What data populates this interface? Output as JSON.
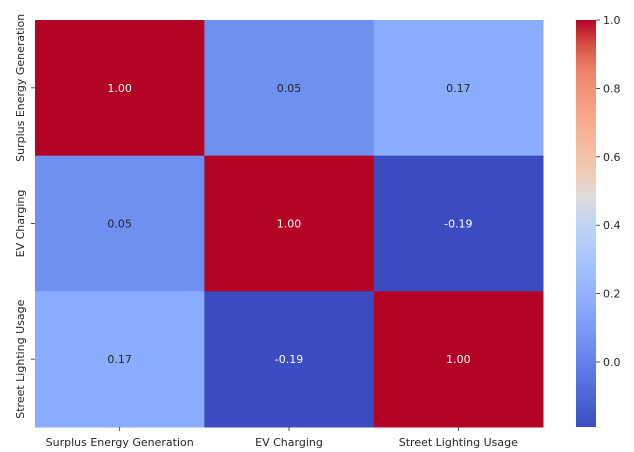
{
  "chart_data": {
    "type": "heatmap",
    "rows": [
      "Surplus Energy Generation",
      "EV Charging",
      "Street Lighting Usage"
    ],
    "columns": [
      "Surplus Energy Generation",
      "EV Charging",
      "Street Lighting Usage"
    ],
    "values": [
      [
        1.0,
        0.05,
        0.17
      ],
      [
        0.05,
        1.0,
        -0.19
      ],
      [
        0.17,
        -0.19,
        1.0
      ]
    ],
    "cell_labels": [
      [
        "1.00",
        "0.05",
        "0.17"
      ],
      [
        "0.05",
        "1.00",
        "-0.19"
      ],
      [
        "0.17",
        "-0.19",
        "1.00"
      ]
    ],
    "colormap": "coolwarm",
    "vmin": -0.19,
    "vmax": 1.0,
    "colorbar": {
      "ticks": [
        0.0,
        0.2,
        0.4,
        0.6,
        0.8,
        1.0
      ],
      "tick_labels": [
        "0.0",
        "0.2",
        "0.4",
        "0.6",
        "0.8",
        "1.0"
      ],
      "placement": "right"
    },
    "grid": false,
    "title": "",
    "xlabel": "",
    "ylabel": ""
  }
}
